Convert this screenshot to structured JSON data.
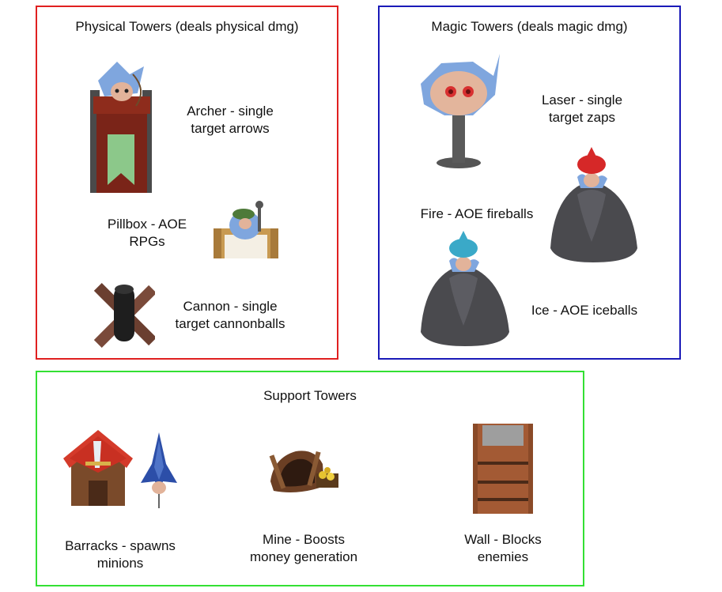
{
  "colors": {
    "physical_border": "#e02020",
    "magic_border": "#1a1ab8",
    "support_border": "#33e033"
  },
  "physical": {
    "title": "Physical Towers (deals physical dmg)",
    "towers": [
      {
        "name": "archer",
        "icon": "archer-tower-icon",
        "line1": "Archer - single",
        "line2": "target arrows"
      },
      {
        "name": "pillbox",
        "icon": "pillbox-tower-icon",
        "line1": "Pillbox - AOE",
        "line2": "RPGs"
      },
      {
        "name": "cannon",
        "icon": "cannon-tower-icon",
        "line1": "Cannon - single",
        "line2": "target cannonballs"
      }
    ]
  },
  "magic": {
    "title": "Magic Towers (deals magic dmg)",
    "towers": [
      {
        "name": "laser",
        "icon": "laser-tower-icon",
        "line1": "Laser - single",
        "line2": "target zaps"
      },
      {
        "name": "fire",
        "icon": "fire-tower-icon",
        "line1": "Fire - AOE fireballs"
      },
      {
        "name": "ice",
        "icon": "ice-tower-icon",
        "line1": "Ice - AOE iceballs"
      }
    ]
  },
  "support": {
    "title": "Support Towers",
    "towers": [
      {
        "name": "barracks",
        "icon": "barracks-tower-icon",
        "line1": "Barracks - spawns",
        "line2": "minions"
      },
      {
        "name": "mine",
        "icon": "mine-tower-icon",
        "line1": "Mine - Boosts",
        "line2": "money generation"
      },
      {
        "name": "wall",
        "icon": "wall-tower-icon",
        "line1": "Wall - Blocks",
        "line2": "enemies"
      }
    ]
  }
}
